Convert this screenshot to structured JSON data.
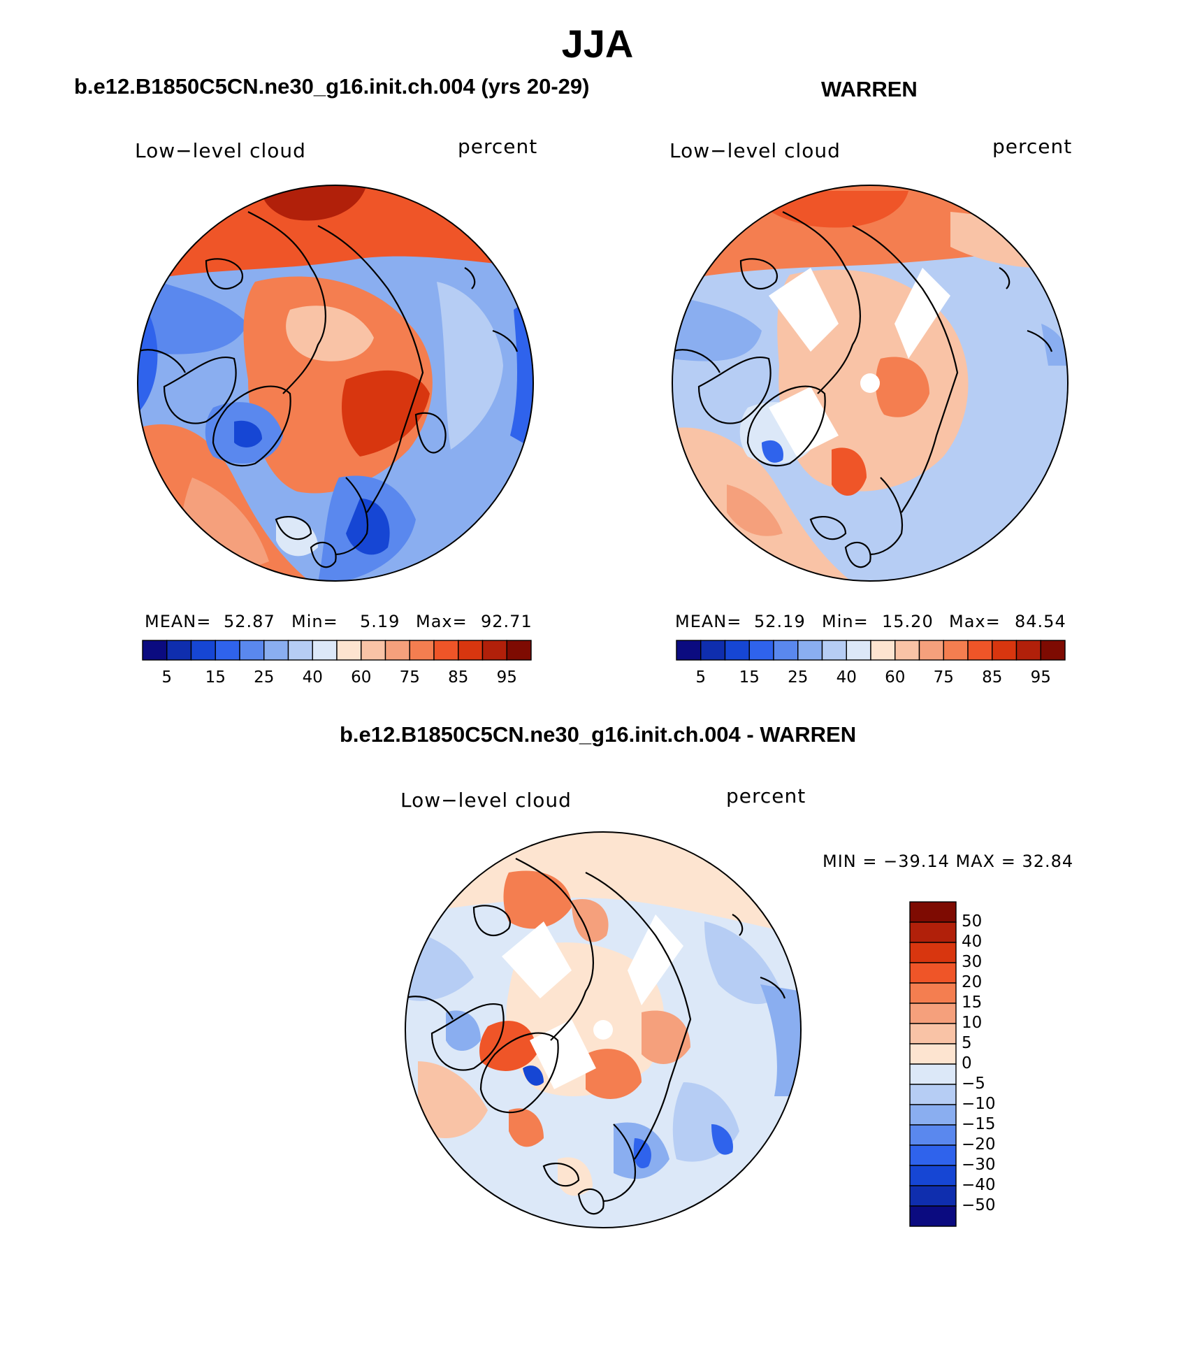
{
  "figure": {
    "season_title": "JJA",
    "panels": [
      {
        "case_title": "b.e12.B1850C5CN.ne30_g16.init.ch.004 (yrs 20-29)",
        "variable": "Low−level cloud",
        "units": "percent",
        "stats": {
          "mean_label": "MEAN=",
          "mean": "52.87",
          "min_label": "Min=",
          "min": "5.19",
          "max_label": "Max=",
          "max": "92.71"
        },
        "colorbar_ticks": [
          "5",
          "15",
          "25",
          "40",
          "60",
          "75",
          "85",
          "95"
        ]
      },
      {
        "case_title": "WARREN",
        "variable": "Low−level cloud",
        "units": "percent",
        "stats": {
          "mean_label": "MEAN=",
          "mean": "52.19",
          "min_label": "Min=",
          "min": "15.20",
          "max_label": "Max=",
          "max": "84.54"
        },
        "colorbar_ticks": [
          "5",
          "15",
          "25",
          "40",
          "60",
          "75",
          "85",
          "95"
        ]
      },
      {
        "case_title": "b.e12.B1850C5CN.ne30_g16.init.ch.004 - WARREN",
        "variable": "Low−level cloud",
        "units": "percent",
        "stats_text": "MIN = −39.14 MAX =   32.84",
        "colorbar_ticks": [
          "50",
          "40",
          "30",
          "20",
          "15",
          "10",
          "5",
          "0",
          "−5",
          "−10",
          "−15",
          "−20",
          "−30",
          "−40",
          "−50"
        ]
      }
    ],
    "abs_palette": [
      "#0b0b80",
      "#0f2eae",
      "#1646d4",
      "#2f63ec",
      "#5a88ee",
      "#8aaef0",
      "#b6cdf4",
      "#dce8f8",
      "#fde4d0",
      "#f9c3a6",
      "#f5a07c",
      "#f47e50",
      "#ef5528",
      "#d8360f",
      "#b1200a",
      "#7e0b02"
    ],
    "diff_palette": [
      "#7e0b02",
      "#b1200a",
      "#d8360f",
      "#ef5528",
      "#f47e50",
      "#f5a07c",
      "#f9c3a6",
      "#fde4d0",
      "#dce8f8",
      "#b6cdf4",
      "#8aaef0",
      "#5a88ee",
      "#2f63ec",
      "#1646d4",
      "#0f2eae",
      "#0b0b80"
    ]
  }
}
